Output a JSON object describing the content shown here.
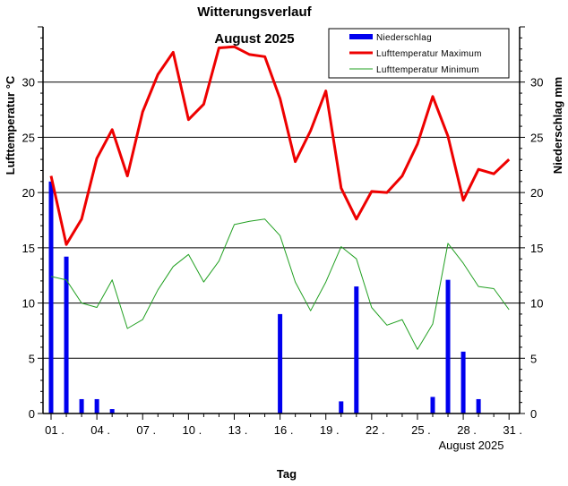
{
  "chart_data": {
    "type": "bar+line",
    "title": "Witterungsverlauf",
    "subtitle": "August 2025",
    "xlabel": "Tag",
    "ylabel_left": "Lufttemperatur °C",
    "ylabel_right": "Niederschlag  mm",
    "date_label": "August 2025",
    "ylim_left": [
      0,
      35
    ],
    "ylim_right": [
      0,
      35
    ],
    "y_ticks_left": [
      "0",
      "5",
      "10",
      "15",
      "20",
      "25",
      "30"
    ],
    "y_ticks_right": [
      "0",
      "5",
      "10",
      "15",
      "20",
      "25",
      "30"
    ],
    "y_tick_values": [
      0,
      5,
      10,
      15,
      20,
      25,
      30
    ],
    "grid": "horizontal",
    "x_tick_labels": [
      "01 .",
      "04 .",
      "07 .",
      "10 .",
      "13 .",
      "16 .",
      "19 .",
      "22 .",
      "25 .",
      "28 .",
      "31 ."
    ],
    "x_tick_days": [
      1,
      4,
      7,
      10,
      13,
      16,
      19,
      22,
      25,
      28,
      31
    ],
    "days": [
      1,
      2,
      3,
      4,
      5,
      6,
      7,
      8,
      9,
      10,
      11,
      12,
      13,
      14,
      15,
      16,
      17,
      18,
      19,
      20,
      21,
      22,
      23,
      24,
      25,
      26,
      27,
      28,
      29,
      30,
      31
    ],
    "series": [
      {
        "name": "Niederschlag",
        "kind": "bar",
        "color": "#0000ee",
        "values": [
          21.0,
          14.2,
          1.3,
          1.3,
          0.4,
          0,
          0,
          0,
          0,
          0,
          0,
          0,
          0,
          0,
          0,
          9.0,
          0,
          0,
          0,
          1.1,
          11.5,
          0,
          0,
          0,
          0,
          1.5,
          12.1,
          5.6,
          1.3,
          0,
          0
        ]
      },
      {
        "name": "Lufttemperatur Maximum",
        "kind": "line",
        "color": "#ee0000",
        "values": [
          21.5,
          15.3,
          17.6,
          23.1,
          25.7,
          21.5,
          27.3,
          30.7,
          32.7,
          26.6,
          28.0,
          33.1,
          33.2,
          32.5,
          32.3,
          28.5,
          22.8,
          25.6,
          29.2,
          20.4,
          17.6,
          20.1,
          20.0,
          21.5,
          24.4,
          28.7,
          25.1,
          19.3,
          22.1,
          21.7,
          23.0
        ]
      },
      {
        "name": "Lufttemperatur Minimum",
        "kind": "line",
        "color": "#22a022",
        "values": [
          12.4,
          12.1,
          10.0,
          9.6,
          12.1,
          7.7,
          8.5,
          11.2,
          13.3,
          14.4,
          11.9,
          13.8,
          17.1,
          17.4,
          17.6,
          16.1,
          11.9,
          9.3,
          11.9,
          15.1,
          14.0,
          9.6,
          8.0,
          8.5,
          5.8,
          8.1,
          15.4,
          13.6,
          11.5,
          11.3,
          9.4
        ]
      }
    ],
    "legend": [
      "Niederschlag",
      "Lufttemperatur Maximum",
      "Lufttemperatur Minimum"
    ]
  }
}
